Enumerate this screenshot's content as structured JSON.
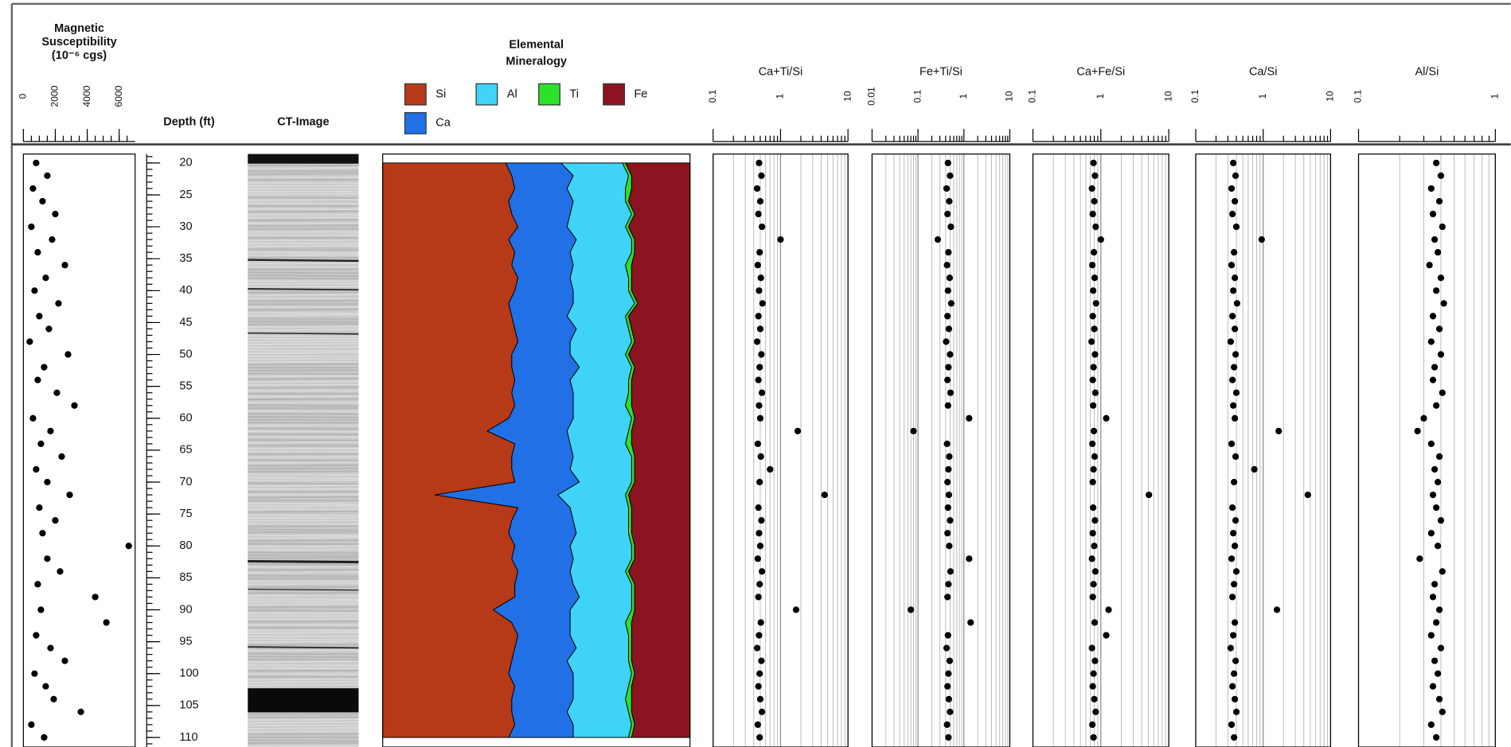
{
  "chart_data": {
    "type": "welllog",
    "depth_label": "Depth (ft)",
    "depth": [
      20,
      22,
      24,
      26,
      28,
      30,
      32,
      34,
      36,
      38,
      40,
      42,
      44,
      46,
      48,
      50,
      52,
      54,
      56,
      58,
      60,
      62,
      64,
      66,
      68,
      70,
      72,
      74,
      76,
      78,
      80,
      82,
      84,
      86,
      88,
      90,
      92,
      94,
      96,
      98,
      100,
      102,
      104,
      106,
      108,
      110
    ],
    "ylim": [
      18.6,
      111.5
    ],
    "yticks": [
      20,
      25,
      30,
      35,
      40,
      45,
      50,
      55,
      60,
      65,
      70,
      75,
      80,
      85,
      90,
      95,
      100,
      105,
      110
    ],
    "tracks": [
      {
        "type": "scatter",
        "title_lines": [
          "Magnetic",
          "Susceptibility",
          "(10⁻⁶ cgs)"
        ],
        "log": false,
        "xlim": [
          0,
          7000
        ],
        "xticks": [
          0,
          2000,
          4000,
          6000
        ],
        "color": "#000000",
        "values": [
          800,
          1500,
          600,
          1200,
          2000,
          500,
          1800,
          900,
          2600,
          1400,
          700,
          2200,
          1000,
          1600,
          400,
          2800,
          1300,
          900,
          2100,
          3200,
          600,
          1700,
          1100,
          2400,
          800,
          1500,
          2900,
          1000,
          2000,
          1200,
          6600,
          1500,
          2300,
          900,
          4500,
          1100,
          5200,
          800,
          1700,
          2600,
          700,
          1400,
          1900,
          3600,
          500,
          1300
        ]
      },
      {
        "type": "image",
        "title_lines": [
          "CT-Image"
        ]
      },
      {
        "type": "area",
        "title_lines": [
          "Elemental",
          "Mineralogy"
        ],
        "xlim": [
          0,
          100
        ],
        "series": [
          {
            "name": "Si",
            "color": "#b63a17",
            "values": [
              40,
              42,
              43,
              41,
              42,
              44,
              41,
              43,
              42,
              44,
              43,
              41,
              42,
              43,
              44,
              42,
              42,
              43,
              42,
              43,
              41,
              34,
              43,
              42,
              42,
              43,
              17,
              44,
              42,
              41,
              43,
              42,
              44,
              43,
              43,
              36,
              42,
              44,
              43,
              42,
              41,
              43,
              42,
              42,
              43,
              41
            ]
          },
          {
            "name": "Ca",
            "color": "#2170e6",
            "values": [
              18,
              20,
              17,
              21,
              19,
              16,
              22,
              18,
              20,
              17,
              19,
              21,
              18,
              20,
              17,
              19,
              22,
              18,
              20,
              19,
              21,
              26,
              18,
              20,
              19,
              21,
              40,
              17,
              20,
              22,
              18,
              20,
              17,
              19,
              21,
              25,
              19,
              17,
              20,
              18,
              21,
              19,
              20,
              18,
              19,
              21
            ]
          },
          {
            "name": "Al",
            "color": "#3fd3f7",
            "values": [
              20,
              18,
              19,
              17,
              20,
              19,
              18,
              20,
              17,
              19,
              18,
              20,
              19,
              17,
              20,
              18,
              17,
              19,
              18,
              17,
              19,
              20,
              18,
              19,
              20,
              17,
              22,
              19,
              18,
              17,
              20,
              19,
              18,
              19,
              17,
              20,
              18,
              19,
              17,
              20,
              19,
              18,
              17,
              20,
              19,
              18
            ]
          },
          {
            "name": "Ti",
            "color": "#2ee02a",
            "values": [
              1,
              1,
              2,
              1,
              1,
              1,
              1,
              1,
              2,
              1,
              1,
              1,
              1,
              1,
              1,
              1,
              1,
              1,
              1,
              2,
              1,
              1,
              2,
              1,
              1,
              1,
              1,
              1,
              1,
              1,
              1,
              1,
              1,
              1,
              1,
              1,
              2,
              1,
              1,
              1,
              1,
              1,
              2,
              1,
              1,
              1
            ]
          },
          {
            "name": "Fe",
            "color": "#8c1420",
            "values": [
              21,
              19,
              19,
              20,
              18,
              20,
              18,
              18,
              19,
              19,
              19,
              17,
              20,
              19,
              18,
              20,
              18,
              19,
              19,
              19,
              18,
              19,
              19,
              18,
              18,
              18,
              20,
              19,
              19,
              19,
              18,
              18,
              20,
              18,
              18,
              18,
              19,
              19,
              19,
              19,
              18,
              19,
              19,
              19,
              18,
              19
            ]
          }
        ]
      },
      {
        "type": "scatter",
        "title_lines": [
          "Ca+Ti/Si"
        ],
        "log": true,
        "xlim": [
          0.1,
          10
        ],
        "xticks": [
          0.1,
          1,
          10
        ],
        "color": "#000000",
        "values": [
          0.48,
          0.52,
          0.45,
          0.5,
          0.47,
          0.53,
          1.0,
          0.49,
          0.46,
          0.51,
          0.48,
          0.54,
          0.47,
          0.5,
          0.45,
          0.52,
          0.49,
          0.47,
          0.53,
          0.48,
          0.5,
          1.8,
          0.46,
          0.51,
          0.7,
          0.49,
          4.5,
          0.47,
          0.52,
          0.48,
          0.5,
          0.46,
          0.53,
          0.49,
          0.47,
          1.7,
          0.51,
          0.48,
          0.45,
          0.52,
          0.49,
          0.47,
          0.5,
          0.53,
          0.46,
          0.49
        ]
      },
      {
        "type": "scatter",
        "title_lines": [
          "Fe+Ti/Si"
        ],
        "log": true,
        "xlim": [
          0.01,
          10
        ],
        "xticks": [
          0.01,
          0.1,
          1,
          10
        ],
        "color": "#000000",
        "values": [
          0.45,
          0.5,
          0.42,
          0.48,
          0.44,
          0.52,
          0.27,
          0.46,
          0.43,
          0.49,
          0.45,
          0.53,
          0.44,
          0.47,
          0.41,
          0.5,
          0.46,
          0.44,
          0.51,
          0.45,
          1.3,
          0.08,
          0.43,
          0.48,
          0.46,
          0.44,
          0.47,
          0.45,
          0.5,
          0.44,
          0.48,
          1.3,
          0.51,
          0.46,
          0.44,
          0.07,
          1.4,
          0.45,
          0.42,
          0.49,
          0.46,
          0.44,
          0.47,
          0.5,
          0.43,
          0.46
        ]
      },
      {
        "type": "scatter",
        "title_lines": [
          "Ca+Fe/Si"
        ],
        "log": true,
        "xlim": [
          0.1,
          10
        ],
        "xticks": [
          0.1,
          1,
          10
        ],
        "color": "#000000",
        "values": [
          0.78,
          0.82,
          0.74,
          0.8,
          0.76,
          0.84,
          1.0,
          0.79,
          0.75,
          0.81,
          0.77,
          0.85,
          0.76,
          0.8,
          0.73,
          0.82,
          0.78,
          0.76,
          0.83,
          0.77,
          1.2,
          0.79,
          0.75,
          0.81,
          0.78,
          0.76,
          5.1,
          0.77,
          0.82,
          0.76,
          0.8,
          0.74,
          0.83,
          0.78,
          0.76,
          1.3,
          0.81,
          1.2,
          0.74,
          0.82,
          0.78,
          0.76,
          0.8,
          0.84,
          0.75,
          0.78
        ]
      },
      {
        "type": "scatter",
        "title_lines": [
          "Ca/Si"
        ],
        "log": true,
        "xlim": [
          0.1,
          10
        ],
        "xticks": [
          0.1,
          1,
          10
        ],
        "color": "#000000",
        "values": [
          0.36,
          0.39,
          0.34,
          0.38,
          0.35,
          0.4,
          0.95,
          0.37,
          0.34,
          0.38,
          0.36,
          0.41,
          0.35,
          0.38,
          0.33,
          0.39,
          0.37,
          0.35,
          0.4,
          0.36,
          0.38,
          1.7,
          0.34,
          0.39,
          0.74,
          0.37,
          4.6,
          0.35,
          0.39,
          0.36,
          0.38,
          0.34,
          0.4,
          0.37,
          0.35,
          1.6,
          0.38,
          0.36,
          0.33,
          0.39,
          0.37,
          0.35,
          0.38,
          0.4,
          0.34,
          0.37
        ]
      },
      {
        "type": "scatter",
        "title_lines": [
          "Al/Si"
        ],
        "log": true,
        "xlim": [
          0.1,
          1
        ],
        "xticks": [
          0.1,
          1
        ],
        "color": "#000000",
        "values": [
          0.37,
          0.4,
          0.34,
          0.39,
          0.35,
          0.41,
          0.36,
          0.38,
          0.33,
          0.4,
          0.37,
          0.42,
          0.35,
          0.39,
          0.34,
          0.4,
          0.36,
          0.35,
          0.41,
          0.37,
          0.3,
          0.27,
          0.34,
          0.39,
          0.36,
          0.38,
          0.35,
          0.37,
          0.4,
          0.34,
          0.38,
          0.28,
          0.41,
          0.36,
          0.35,
          0.39,
          0.37,
          0.34,
          0.4,
          0.36,
          0.38,
          0.35,
          0.39,
          0.41,
          0.34,
          0.37
        ]
      }
    ]
  }
}
